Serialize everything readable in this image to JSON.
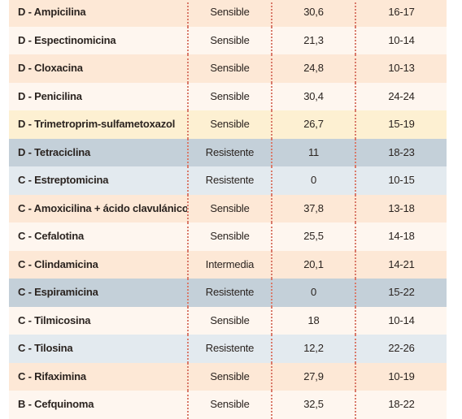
{
  "colors": {
    "peach": "#fde8d6",
    "light": "#fef6ef",
    "yellow": "#fdf0d2",
    "gray_blue": "#c4d0d9",
    "light_blue": "#e3eaef",
    "dotted_divider": "#d97a6a"
  },
  "rows": [
    {
      "name": "D - Ampicilina",
      "result": "Sensible",
      "value": "30,6",
      "range": "16-17",
      "bg": "peach"
    },
    {
      "name": "D - Espectinomicina",
      "result": "Sensible",
      "value": "21,3",
      "range": "10-14",
      "bg": "light"
    },
    {
      "name": "D - Cloxacina",
      "result": "Sensible",
      "value": "24,8",
      "range": "10-13",
      "bg": "peach"
    },
    {
      "name": "D - Penicilina",
      "result": "Sensible",
      "value": "30,4",
      "range": "24-24",
      "bg": "light"
    },
    {
      "name": "D - Trimetroprim-sulfametoxazol",
      "result": "Sensible",
      "value": "26,7",
      "range": "15-19",
      "bg": "yellow"
    },
    {
      "name": "D - Tetraciclina",
      "result": "Resistente",
      "value": "11",
      "range": "18-23",
      "bg": "gray_blue"
    },
    {
      "name": "C - Estreptomicina",
      "result": "Resistente",
      "value": "0",
      "range": "10-15",
      "bg": "light_blue"
    },
    {
      "name": "C - Amoxicilina + ácido clavulánico",
      "result": "Sensible",
      "value": "37,8",
      "range": "13-18",
      "bg": "peach"
    },
    {
      "name": "C - Cefalotina",
      "result": "Sensible",
      "value": "25,5",
      "range": "14-18",
      "bg": "light"
    },
    {
      "name": "C - Clindamicina",
      "result": "Intermedia",
      "value": "20,1",
      "range": "14-21",
      "bg": "peach"
    },
    {
      "name": "C - Espiramicina",
      "result": "Resistente",
      "value": "0",
      "range": "15-22",
      "bg": "gray_blue"
    },
    {
      "name": "C - Tilmicosina",
      "result": "Sensible",
      "value": "18",
      "range": "10-14",
      "bg": "light"
    },
    {
      "name": "C - Tilosina",
      "result": "Resistente",
      "value": "12,2",
      "range": "22-26",
      "bg": "light_blue"
    },
    {
      "name": "C - Rifaximina",
      "result": "Sensible",
      "value": "27,9",
      "range": "10-19",
      "bg": "peach"
    },
    {
      "name": "B - Cefquinoma",
      "result": "Sensible",
      "value": "32,5",
      "range": "18-22",
      "bg": "light"
    }
  ]
}
